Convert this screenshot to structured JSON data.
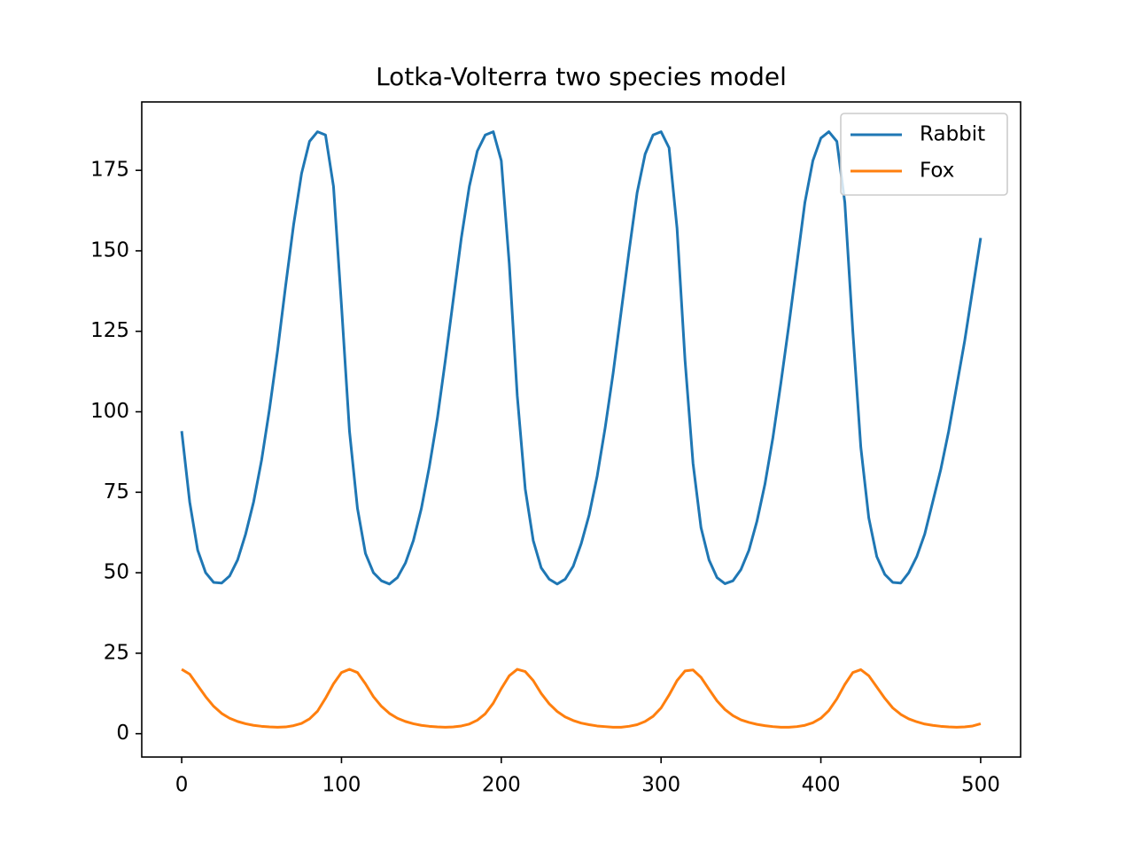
{
  "chart_data": {
    "type": "line",
    "title": "Lotka-Volterra two species model",
    "x": [
      0,
      5,
      10,
      15,
      20,
      25,
      30,
      35,
      40,
      45,
      50,
      55,
      60,
      65,
      70,
      75,
      80,
      85,
      90,
      95,
      100,
      105,
      110,
      115,
      120,
      125,
      130,
      135,
      140,
      145,
      150,
      155,
      160,
      165,
      170,
      175,
      180,
      185,
      190,
      195,
      200,
      205,
      210,
      215,
      220,
      225,
      230,
      235,
      240,
      245,
      250,
      255,
      260,
      265,
      270,
      275,
      280,
      285,
      290,
      295,
      300,
      305,
      310,
      315,
      320,
      325,
      330,
      335,
      340,
      345,
      350,
      355,
      360,
      365,
      370,
      375,
      380,
      385,
      390,
      395,
      400,
      405,
      410,
      415,
      420,
      425,
      430,
      435,
      440,
      445,
      450,
      455,
      460,
      465,
      470,
      475,
      480,
      485,
      490,
      495,
      500
    ],
    "series": [
      {
        "name": "Rabbit",
        "color": "#1f77b4",
        "values": [
          94,
          72,
          57,
          50,
          47,
          46.8,
          49,
          54,
          62,
          72,
          85,
          101,
          119,
          139,
          158,
          174,
          184,
          187,
          186,
          170,
          133,
          94,
          70,
          56,
          50,
          47.5,
          46.5,
          48.5,
          53,
          60,
          70,
          83,
          98,
          116,
          135,
          154,
          170,
          181,
          186,
          187,
          178,
          146,
          105,
          76,
          60,
          51.5,
          48,
          46.5,
          48,
          52,
          59,
          68,
          80,
          95,
          112,
          131,
          150,
          168,
          180,
          186,
          187,
          182,
          157,
          116,
          84,
          64,
          54,
          48.5,
          46.6,
          47.5,
          51,
          57,
          66,
          77.5,
          92,
          109,
          127,
          146,
          165,
          178,
          185,
          187,
          184,
          165,
          125,
          89,
          67,
          55,
          49.5,
          47,
          46.8,
          50,
          55,
          62,
          72,
          82,
          94,
          108,
          122,
          138,
          154
        ]
      },
      {
        "name": "Fox",
        "color": "#ff7f0e",
        "values": [
          20,
          18.5,
          15,
          11.5,
          8.5,
          6.3,
          4.8,
          3.8,
          3.1,
          2.6,
          2.3,
          2.1,
          2.0,
          2.1,
          2.5,
          3.2,
          4.6,
          7,
          11,
          15.5,
          19,
          20,
          19,
          15.5,
          11.5,
          8.5,
          6.3,
          4.8,
          3.8,
          3.1,
          2.6,
          2.3,
          2.1,
          2.0,
          2.1,
          2.4,
          3.0,
          4.2,
          6.2,
          9.5,
          14,
          18,
          20,
          19.3,
          16.5,
          12.5,
          9.3,
          6.9,
          5.2,
          4.1,
          3.3,
          2.8,
          2.4,
          2.2,
          2.0,
          2.0,
          2.3,
          2.8,
          3.8,
          5.4,
          8,
          12,
          16.5,
          19.5,
          19.8,
          17.5,
          13.8,
          10.2,
          7.5,
          5.6,
          4.3,
          3.5,
          2.9,
          2.5,
          2.2,
          2.0,
          2.0,
          2.2,
          2.6,
          3.4,
          4.8,
          7.2,
          10.8,
          15.3,
          19,
          19.9,
          18,
          14.5,
          11,
          8,
          6,
          4.6,
          3.7,
          3.0,
          2.6,
          2.3,
          2.1,
          2.0,
          2.1,
          2.4,
          3.1
        ]
      }
    ],
    "xlim": [
      -25,
      525
    ],
    "xticks": [
      0,
      100,
      200,
      300,
      400,
      500
    ],
    "ylim": [
      -7.25,
      196.25
    ],
    "yticks": [
      0,
      25,
      50,
      75,
      100,
      125,
      150,
      175
    ],
    "legend": "upper right"
  }
}
